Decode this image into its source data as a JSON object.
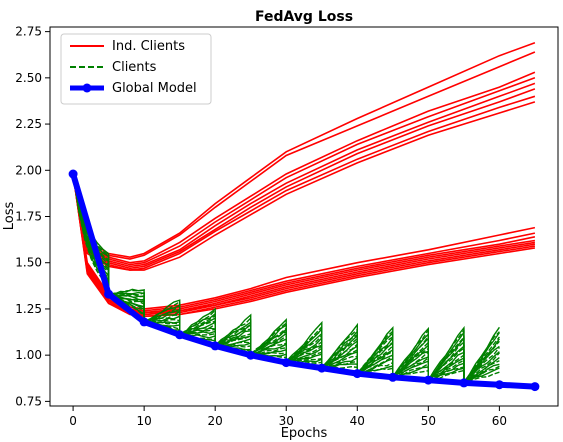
{
  "chart_data": {
    "type": "line",
    "title": "FedAvg Loss",
    "xlabel": "Epochs",
    "ylabel": "Loss",
    "xlim": [
      -3.25,
      68.25
    ],
    "ylim": [
      0.725,
      2.775
    ],
    "xticks": [
      0,
      10,
      20,
      30,
      40,
      50,
      60
    ],
    "yticks": [
      0.75,
      1.0,
      1.25,
      1.5,
      1.75,
      2.0,
      2.25,
      2.5,
      2.75
    ],
    "ytick_labels": [
      "0.75",
      "1.00",
      "1.25",
      "1.50",
      "1.75",
      "2.00",
      "2.25",
      "2.50",
      "2.75"
    ],
    "grid": false,
    "legend": {
      "placement": "top-left",
      "entries": [
        "Ind. Clients",
        "Clients",
        "Global Model"
      ]
    },
    "colors": {
      "ind_clients": "#ff0000",
      "clients": "#008000",
      "global_model": "#0000ff"
    },
    "global_model": {
      "name": "Global Model",
      "x": [
        0,
        5,
        10,
        15,
        20,
        25,
        30,
        35,
        40,
        45,
        50,
        55,
        60,
        65
      ],
      "y": [
        1.98,
        1.33,
        1.18,
        1.11,
        1.05,
        1.0,
        0.96,
        0.93,
        0.9,
        0.88,
        0.865,
        0.85,
        0.84,
        0.83
      ]
    },
    "ind_clients": {
      "name": "Ind. Clients",
      "series": [
        {
          "x": [
            0,
            2,
            5,
            8,
            10,
            15,
            20,
            25,
            30,
            40,
            50,
            60,
            65
          ],
          "y": [
            1.98,
            1.62,
            1.55,
            1.53,
            1.55,
            1.66,
            1.82,
            1.96,
            2.1,
            2.28,
            2.45,
            2.62,
            2.69
          ]
        },
        {
          "x": [
            0,
            2,
            5,
            8,
            10,
            15,
            20,
            25,
            30,
            40,
            50,
            60,
            65
          ],
          "y": [
            1.98,
            1.6,
            1.54,
            1.52,
            1.54,
            1.65,
            1.8,
            1.94,
            2.08,
            2.24,
            2.4,
            2.56,
            2.64
          ]
        },
        {
          "x": [
            0,
            2,
            5,
            8,
            10,
            15,
            20,
            25,
            30,
            40,
            50,
            60,
            65
          ],
          "y": [
            1.98,
            1.59,
            1.53,
            1.5,
            1.51,
            1.61,
            1.74,
            1.86,
            1.98,
            2.16,
            2.32,
            2.45,
            2.53
          ]
        },
        {
          "x": [
            0,
            2,
            5,
            8,
            10,
            15,
            20,
            25,
            30,
            40,
            50,
            60,
            65
          ],
          "y": [
            1.98,
            1.58,
            1.52,
            1.49,
            1.5,
            1.59,
            1.72,
            1.84,
            1.96,
            2.14,
            2.29,
            2.43,
            2.5
          ]
        },
        {
          "x": [
            0,
            2,
            5,
            8,
            10,
            15,
            20,
            25,
            30,
            40,
            50,
            60,
            65
          ],
          "y": [
            1.98,
            1.58,
            1.51,
            1.48,
            1.49,
            1.57,
            1.7,
            1.82,
            1.93,
            2.11,
            2.26,
            2.4,
            2.47
          ]
        },
        {
          "x": [
            0,
            2,
            5,
            8,
            10,
            15,
            20,
            25,
            30,
            40,
            50,
            60,
            65
          ],
          "y": [
            1.98,
            1.57,
            1.5,
            1.47,
            1.48,
            1.56,
            1.68,
            1.8,
            1.91,
            2.09,
            2.24,
            2.37,
            2.44
          ]
        },
        {
          "x": [
            0,
            2,
            5,
            8,
            10,
            15,
            20,
            25,
            30,
            40,
            50,
            60,
            65
          ],
          "y": [
            1.98,
            1.56,
            1.49,
            1.46,
            1.47,
            1.55,
            1.67,
            1.78,
            1.89,
            2.06,
            2.21,
            2.34,
            2.4
          ]
        },
        {
          "x": [
            0,
            2,
            5,
            8,
            10,
            15,
            20,
            25,
            30,
            40,
            50,
            60,
            65
          ],
          "y": [
            1.98,
            1.55,
            1.48,
            1.46,
            1.46,
            1.53,
            1.65,
            1.76,
            1.87,
            2.04,
            2.19,
            2.31,
            2.37
          ]
        },
        {
          "x": [
            0,
            2,
            5,
            8,
            10,
            15,
            20,
            25,
            30,
            40,
            50,
            60,
            65
          ],
          "y": [
            1.98,
            1.5,
            1.33,
            1.26,
            1.25,
            1.27,
            1.31,
            1.36,
            1.42,
            1.5,
            1.57,
            1.65,
            1.69
          ]
        },
        {
          "x": [
            0,
            2,
            5,
            8,
            10,
            15,
            20,
            25,
            30,
            40,
            50,
            60,
            65
          ],
          "y": [
            1.98,
            1.49,
            1.32,
            1.25,
            1.24,
            1.26,
            1.3,
            1.35,
            1.4,
            1.48,
            1.55,
            1.62,
            1.66
          ]
        },
        {
          "x": [
            0,
            2,
            5,
            8,
            10,
            15,
            20,
            25,
            30,
            40,
            50,
            60,
            65
          ],
          "y": [
            1.98,
            1.48,
            1.31,
            1.25,
            1.23,
            1.25,
            1.29,
            1.34,
            1.39,
            1.47,
            1.54,
            1.6,
            1.64
          ]
        },
        {
          "x": [
            0,
            2,
            5,
            8,
            10,
            15,
            20,
            25,
            30,
            40,
            50,
            60,
            65
          ],
          "y": [
            1.98,
            1.47,
            1.3,
            1.24,
            1.23,
            1.24,
            1.28,
            1.33,
            1.38,
            1.46,
            1.53,
            1.59,
            1.62
          ]
        },
        {
          "x": [
            0,
            2,
            5,
            8,
            10,
            15,
            20,
            25,
            30,
            40,
            50,
            60,
            65
          ],
          "y": [
            1.98,
            1.46,
            1.3,
            1.24,
            1.22,
            1.24,
            1.27,
            1.32,
            1.37,
            1.45,
            1.52,
            1.58,
            1.61
          ]
        },
        {
          "x": [
            0,
            2,
            5,
            8,
            10,
            15,
            20,
            25,
            30,
            40,
            50,
            60,
            65
          ],
          "y": [
            1.98,
            1.45,
            1.29,
            1.23,
            1.22,
            1.23,
            1.27,
            1.31,
            1.36,
            1.44,
            1.51,
            1.57,
            1.6
          ]
        },
        {
          "x": [
            0,
            2,
            5,
            8,
            10,
            15,
            20,
            25,
            30,
            40,
            50,
            60,
            65
          ],
          "y": [
            1.98,
            1.45,
            1.28,
            1.23,
            1.21,
            1.22,
            1.26,
            1.3,
            1.35,
            1.43,
            1.5,
            1.56,
            1.59
          ]
        },
        {
          "x": [
            0,
            2,
            5,
            8,
            10,
            15,
            20,
            25,
            30,
            40,
            50,
            60,
            65
          ],
          "y": [
            1.98,
            1.44,
            1.28,
            1.22,
            1.21,
            1.22,
            1.25,
            1.29,
            1.34,
            1.42,
            1.49,
            1.55,
            1.58
          ]
        }
      ]
    },
    "clients": {
      "name": "Clients",
      "round_length": 5,
      "start_peaks": [
        1.98,
        1.5,
        1.36,
        1.3,
        1.25,
        1.21,
        1.19,
        1.17,
        1.16,
        1.15,
        1.15,
        1.15,
        1.15
      ],
      "start_lows": [
        1.98,
        1.3,
        1.22,
        1.12,
        1.06,
        1.02,
        0.99,
        0.96,
        0.94,
        0.93,
        0.92,
        0.91,
        0.91
      ],
      "count": 16
    }
  }
}
